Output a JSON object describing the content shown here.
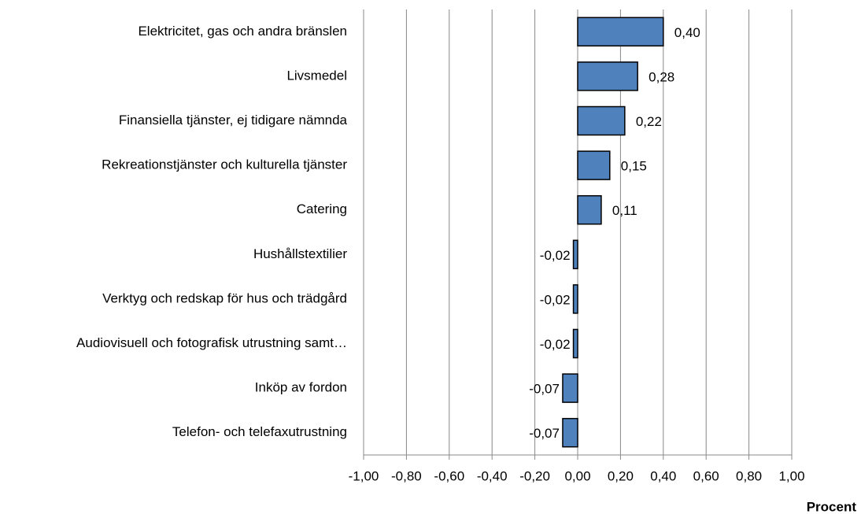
{
  "chart_data": {
    "type": "bar",
    "orientation": "horizontal",
    "categories": [
      "Elektricitet, gas och andra bränslen",
      "Livsmedel",
      "Finansiella tjänster, ej tidigare nämnda",
      "Rekreationstjänster och kulturella tjänster",
      "Catering",
      "Hushållstextilier",
      "Verktyg och redskap för hus och trädgård",
      "Audiovisuell och fotografisk utrustning samt…",
      "Inköp av fordon",
      "Telefon- och telefaxutrustning"
    ],
    "values": [
      0.4,
      0.28,
      0.22,
      0.15,
      0.11,
      -0.02,
      -0.02,
      -0.02,
      -0.07,
      -0.07
    ],
    "value_labels": [
      "0,40",
      "0,28",
      "0,22",
      "0,15",
      "0,11",
      "-0,02",
      "-0,02",
      "-0,02",
      "-0,07",
      "-0,07"
    ],
    "color": "#4f81bd",
    "x_label": "Procent",
    "xlim": [
      -1,
      1
    ],
    "xticks": [
      {
        "value": -1,
        "label": "-1,00"
      },
      {
        "value": -0.8,
        "label": "-0,80"
      },
      {
        "value": -0.6,
        "label": "-0,60"
      },
      {
        "value": -0.4,
        "label": "-0,40"
      },
      {
        "value": -0.2,
        "label": "-0,20"
      },
      {
        "value": 0,
        "label": "0,00"
      },
      {
        "value": 0.2,
        "label": "0,20"
      },
      {
        "value": 0.4,
        "label": "0,40"
      },
      {
        "value": 0.6,
        "label": "0,60"
      },
      {
        "value": 0.8,
        "label": "0,80"
      },
      {
        "value": 1,
        "label": "1,00"
      }
    ],
    "grid": true
  }
}
